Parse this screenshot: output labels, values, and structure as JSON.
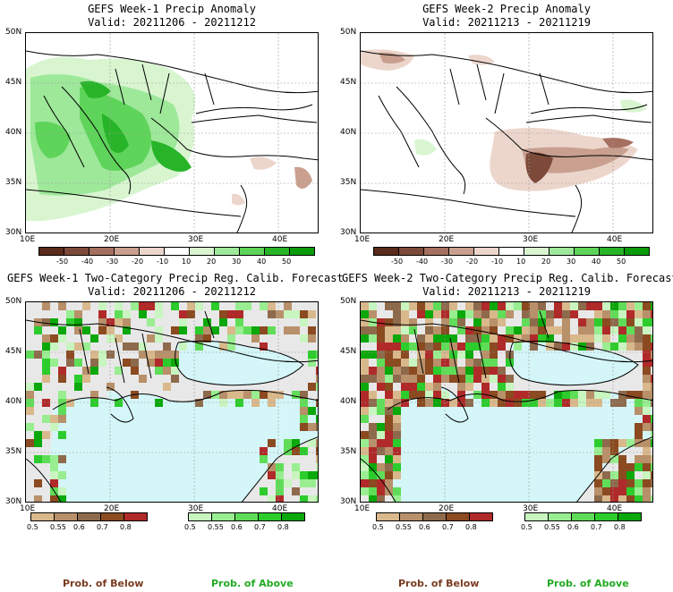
{
  "panels": [
    {
      "title": "GEFS Week-1 Precip Anomaly",
      "valid": "Valid: 20211206 - 20211212"
    },
    {
      "title": "GEFS Week-2 Precip Anomaly",
      "valid": "Valid: 20211213 - 20211219"
    },
    {
      "title": "GEFS Week-1 Two-Category Precip Reg. Calib. Forecast",
      "valid": "Valid: 20211206 - 20211212"
    },
    {
      "title": "GEFS Week-2 Two-Category Precip Reg. Calib. Forecast",
      "valid": "Valid: 20211213 - 20211219"
    }
  ],
  "lat_ticks": [
    "50N",
    "45N",
    "40N",
    "35N",
    "30N"
  ],
  "lon_ticks": [
    "10E",
    "20E",
    "30E",
    "40E"
  ],
  "anomaly_scale": {
    "labels": [
      "-50",
      "-40",
      "-30",
      "-20",
      "-10",
      "10",
      "20",
      "30",
      "40",
      "50"
    ],
    "colors": [
      "#5a2a1a",
      "#7d4a3a",
      "#a57060",
      "#c9a090",
      "#ecd6cc",
      "#ffffff",
      "#d8f5d0",
      "#9ee89a",
      "#5ed45a",
      "#28b428",
      "#0a9a0a"
    ]
  },
  "prob_scale": {
    "below_labels": [
      "0.5",
      "0.55",
      "0.6",
      "0.7",
      "0.8"
    ],
    "below_colors": [
      "#d9b88c",
      "#b8906a",
      "#8e6a4c",
      "#8b4a20",
      "#b02a2a"
    ],
    "above_labels": [
      "0.5",
      "0.55",
      "0.6",
      "0.7",
      "0.8"
    ],
    "above_colors": [
      "#c8f5c0",
      "#98ee90",
      "#60dd58",
      "#2ccc2c",
      "#0aa80a"
    ],
    "below_title": "Prob. of Below",
    "above_title": "Prob. of Above"
  },
  "colors": {
    "sea": "#d4f6f8",
    "land_neutral": "#e8e8e8",
    "below_title": "#7a3b20",
    "above_title": "#22aa22"
  }
}
